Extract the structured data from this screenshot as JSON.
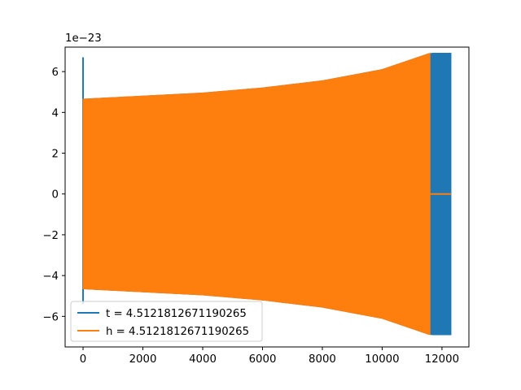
{
  "chart_data": {
    "type": "line",
    "title": "",
    "xlabel": "",
    "ylabel": "",
    "offset_label": "1e−23",
    "xlim": [
      -600,
      12900
    ],
    "ylim": [
      -7.5,
      7.2
    ],
    "x_ticks": [
      0,
      2000,
      4000,
      6000,
      8000,
      10000,
      12000
    ],
    "x_tick_labels": [
      "0",
      "2000",
      "4000",
      "6000",
      "8000",
      "10000",
      "12000"
    ],
    "y_ticks": [
      -6,
      -4,
      -2,
      0,
      2,
      4,
      6
    ],
    "y_tick_labels": [
      "−6",
      "−4",
      "−2",
      "0",
      "2",
      "4",
      "6"
    ],
    "grid": false,
    "legend_position": "lower-left",
    "series": [
      {
        "name": "t = 4.5121812671190265",
        "color": "#1f77b4",
        "description": "dense oscillation, envelope amplitude in units of 1e-23",
        "initial_spike": {
          "x": 0,
          "ymin": -5.4,
          "ymax": 6.7
        },
        "envelope": [
          {
            "x": 0,
            "amp": 4.65
          },
          {
            "x": 2000,
            "amp": 4.8
          },
          {
            "x": 4000,
            "amp": 4.95
          },
          {
            "x": 6000,
            "amp": 5.2
          },
          {
            "x": 8000,
            "amp": 5.55
          },
          {
            "x": 10000,
            "amp": 6.1
          },
          {
            "x": 11600,
            "amp": 6.9
          },
          {
            "x": 12300,
            "amp": 6.9
          }
        ],
        "x_end": 12300
      },
      {
        "name": "h = 4.5121812671190265",
        "color": "#ff7f0e",
        "description": "dense oscillation, envelope amplitude in units of 1e-23",
        "envelope": [
          {
            "x": 0,
            "amp": 4.65
          },
          {
            "x": 2000,
            "amp": 4.8
          },
          {
            "x": 4000,
            "amp": 4.95
          },
          {
            "x": 6000,
            "amp": 5.2
          },
          {
            "x": 8000,
            "amp": 5.55
          },
          {
            "x": 10000,
            "amp": 6.1
          },
          {
            "x": 11600,
            "amp": 6.9
          }
        ],
        "x_end": 11600,
        "flat_tail": {
          "x_start": 11600,
          "x_end": 12300,
          "y": 0
        }
      }
    ]
  }
}
